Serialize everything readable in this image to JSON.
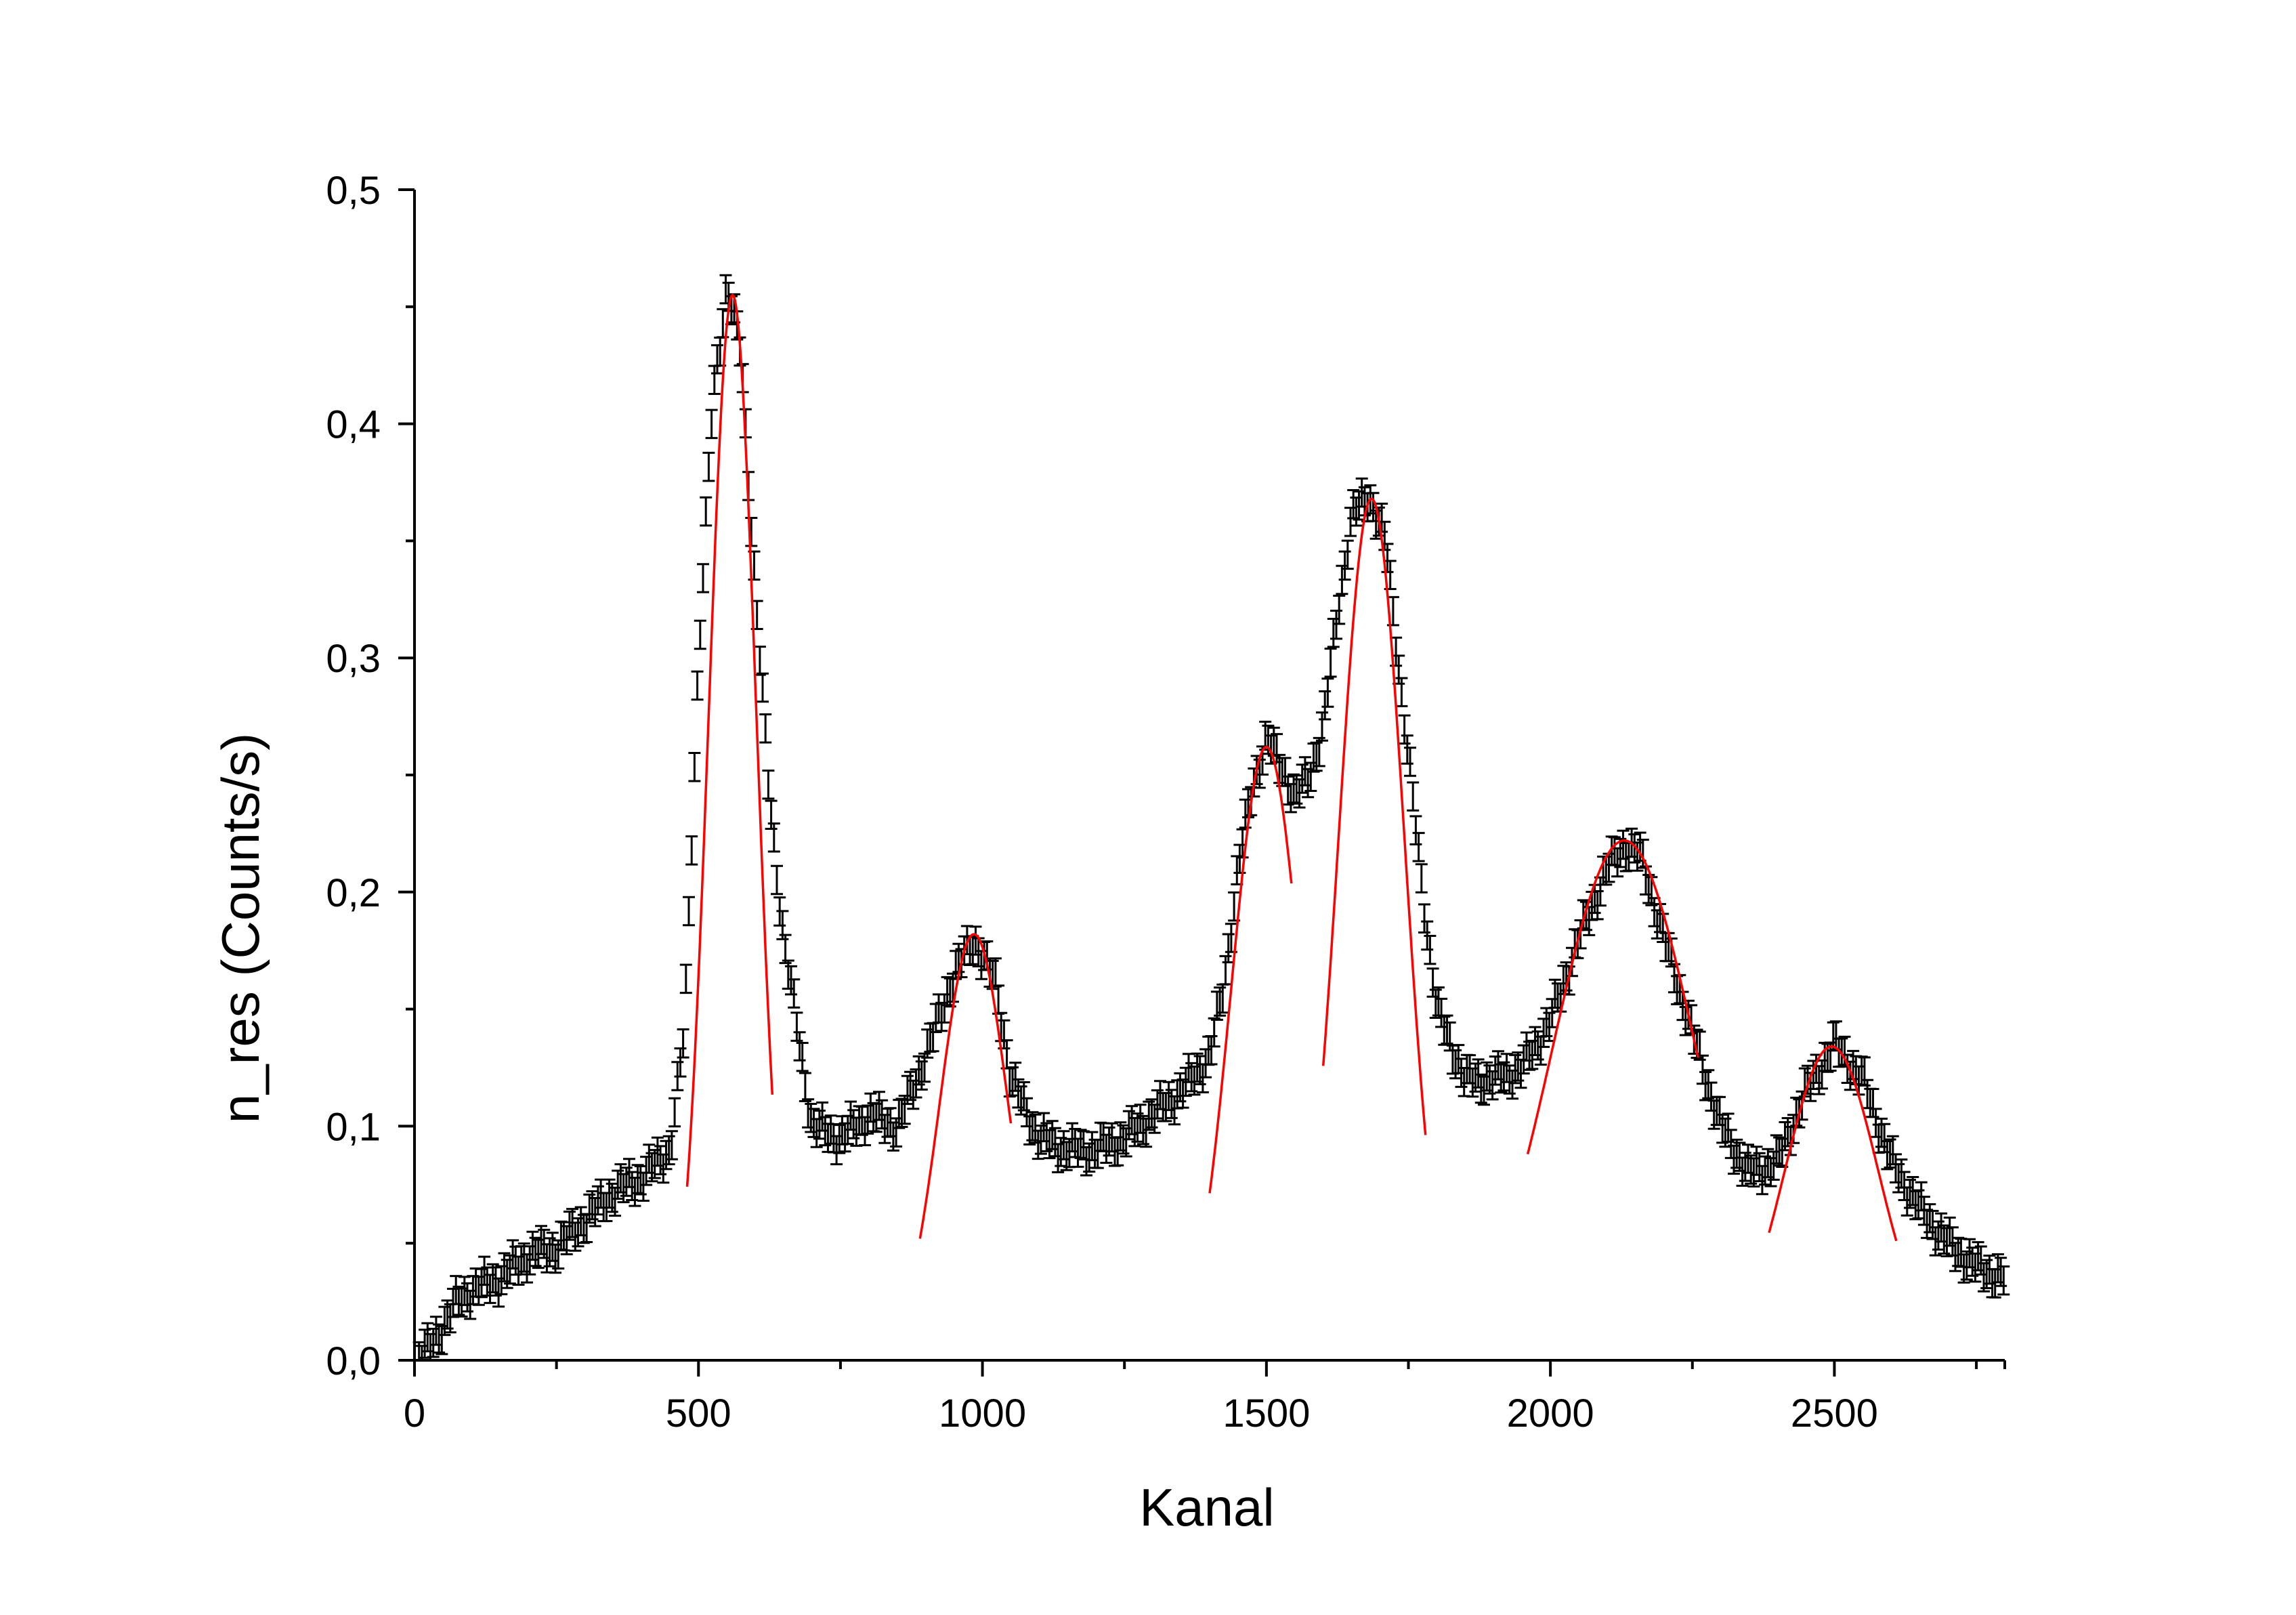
{
  "colors": {
    "background": "#ffffff",
    "axis": "#000000",
    "data": "#000000",
    "fit": "#ff0000"
  },
  "chart_data": {
    "type": "scatter",
    "title": "",
    "xlabel": "Kanal",
    "ylabel": "n_res (Counts/s)",
    "xlim": [
      0,
      2800
    ],
    "ylim": [
      0,
      0.5
    ],
    "x_ticks": [
      0,
      500,
      1000,
      1500,
      2000,
      2500
    ],
    "x_tick_labels": [
      "0",
      "500",
      "1000",
      "1500",
      "2000",
      "2500"
    ],
    "y_ticks": [
      0,
      0.1,
      0.2,
      0.3,
      0.4,
      0.5
    ],
    "y_tick_labels": [
      "0,0",
      "0,1",
      "0,2",
      "0,3",
      "0,4",
      "0,5"
    ],
    "x_minor_step": 250,
    "y_minor_step": 0.05,
    "grid": false,
    "legend": "none",
    "series": [
      {
        "kind": "measurement-with-error-bars",
        "x": [
          0,
          25,
          50,
          75,
          100,
          150,
          200,
          250,
          300,
          350,
          400,
          450,
          475,
          500,
          525,
          550,
          575,
          600,
          625,
          650,
          700,
          750,
          800,
          850,
          900,
          950,
          985,
          1025,
          1050,
          1100,
          1150,
          1200,
          1250,
          1300,
          1350,
          1400,
          1425,
          1450,
          1475,
          1500,
          1525,
          1550,
          1575,
          1600,
          1625,
          1650,
          1680,
          1710,
          1740,
          1775,
          1800,
          1850,
          1900,
          1950,
          2000,
          2050,
          2100,
          2130,
          2160,
          2200,
          2250,
          2300,
          2350,
          2400,
          2450,
          2500,
          2550,
          2600,
          2650,
          2700,
          2750,
          2800
        ],
        "y": [
          0.0,
          0.005,
          0.015,
          0.025,
          0.03,
          0.035,
          0.045,
          0.048,
          0.06,
          0.072,
          0.078,
          0.09,
          0.14,
          0.3,
          0.41,
          0.46,
          0.43,
          0.33,
          0.24,
          0.18,
          0.1,
          0.095,
          0.105,
          0.1,
          0.13,
          0.165,
          0.18,
          0.16,
          0.12,
          0.095,
          0.09,
          0.09,
          0.095,
          0.105,
          0.115,
          0.13,
          0.16,
          0.21,
          0.245,
          0.265,
          0.255,
          0.24,
          0.25,
          0.27,
          0.32,
          0.36,
          0.37,
          0.35,
          0.28,
          0.2,
          0.15,
          0.12,
          0.12,
          0.125,
          0.145,
          0.18,
          0.21,
          0.22,
          0.215,
          0.18,
          0.14,
          0.1,
          0.08,
          0.085,
          0.115,
          0.135,
          0.12,
          0.085,
          0.065,
          0.05,
          0.04,
          0.035
        ],
        "error": 0.006
      },
      {
        "kind": "gaussian-fit",
        "peaks": [
          {
            "center": 560,
            "height": 0.455,
            "sigma": 42,
            "from": 480,
            "to": 630
          },
          {
            "center": 985,
            "height": 0.182,
            "sigma": 60,
            "from": 890,
            "to": 1050
          },
          {
            "center": 1500,
            "height": 0.262,
            "sigma": 62,
            "from": 1400,
            "to": 1545
          },
          {
            "center": 1685,
            "height": 0.368,
            "sigma": 58,
            "from": 1600,
            "to": 1780
          },
          {
            "center": 2130,
            "height": 0.222,
            "sigma": 125,
            "from": 1960,
            "to": 2260
          },
          {
            "center": 2495,
            "height": 0.134,
            "sigma": 82,
            "from": 2385,
            "to": 2610
          }
        ]
      }
    ]
  }
}
